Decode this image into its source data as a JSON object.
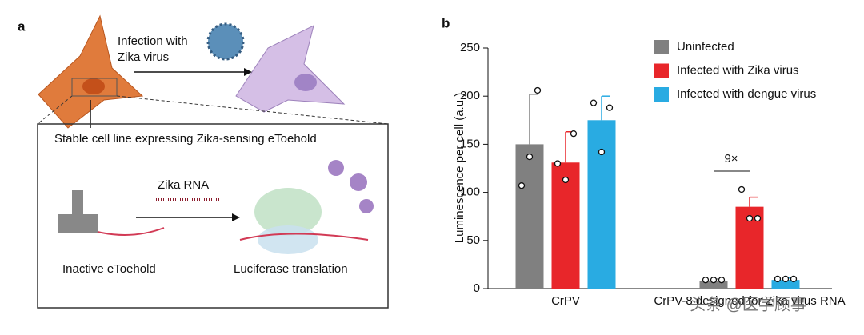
{
  "panel_a": {
    "label": "a",
    "infection_line1": "Infection with",
    "infection_line2": "Zika virus",
    "box_title": "Stable cell line expressing Zika-sensing eToehold",
    "rna_label": "Zika RNA",
    "left_caption": "Inactive eToehold",
    "right_caption": "Luciferase translation"
  },
  "chart_data": {
    "type": "bar",
    "panel_label": "b",
    "ylabel": "Luminescence per cell (a.u.)",
    "categories": [
      "CrPV",
      "CrPV-8 designed for Zika virus RNA"
    ],
    "series": [
      {
        "name": "Uninfected",
        "color": "#808080",
        "values": [
          150,
          8
        ],
        "errors": [
          52,
          2
        ],
        "points": [
          [
            107,
            137,
            206
          ],
          [
            9,
            9,
            9
          ]
        ]
      },
      {
        "name": "Infected with Zika virus",
        "color": "#e8262a",
        "values": [
          131,
          85
        ],
        "errors": [
          32,
          10
        ],
        "points": [
          [
            130,
            113,
            161
          ],
          [
            103,
            73,
            73
          ]
        ]
      },
      {
        "name": "Infected with dengue virus",
        "color": "#29abe2",
        "values": [
          175,
          9
        ],
        "errors": [
          25,
          2
        ],
        "points": [
          [
            193,
            142,
            188
          ],
          [
            10,
            10,
            10
          ]
        ]
      }
    ],
    "ylim": [
      0,
      250
    ],
    "yticks": [
      0,
      50,
      100,
      150,
      200,
      250
    ],
    "annotation": "9×",
    "legend": "top-right",
    "watermark": "头条 @医学顾事"
  }
}
